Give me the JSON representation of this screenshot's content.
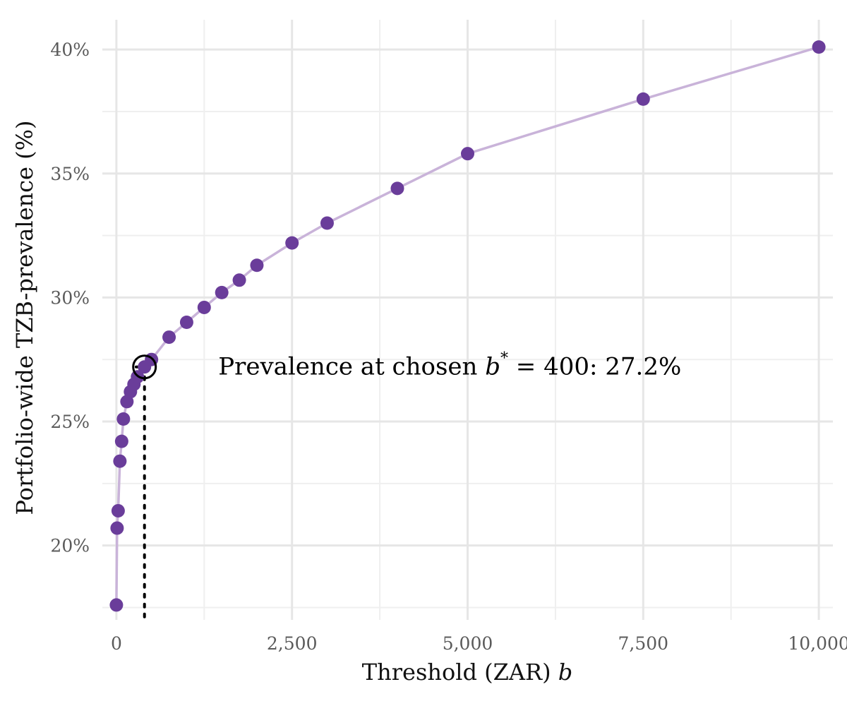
{
  "chart_data": {
    "type": "line",
    "title": "",
    "xlabel": "Threshold (ZAR) ",
    "xlabel_var": "b",
    "ylabel": "Portfolio-wide TZB-prevalence (%)",
    "xlim": [
      -200,
      10200
    ],
    "ylim": [
      17.0,
      41.2
    ],
    "x_ticks": [
      0,
      2500,
      5000,
      7500,
      10000
    ],
    "x_tick_labels": [
      "0",
      "2,500",
      "5,000",
      "7,500",
      "10,000"
    ],
    "y_ticks": [
      20,
      25,
      30,
      35,
      40
    ],
    "y_tick_labels": [
      "20%",
      "25%",
      "30%",
      "35%",
      "40%"
    ],
    "grid": true,
    "series": [
      {
        "x": [
          0,
          10,
          25,
          50,
          75,
          100,
          150,
          200,
          250,
          300,
          400,
          500,
          750,
          1000,
          1250,
          1500,
          1750,
          2000,
          2500,
          3000,
          4000,
          5000,
          7500,
          10000
        ],
        "y": [
          17.6,
          20.7,
          21.4,
          23.4,
          24.2,
          25.1,
          25.8,
          26.2,
          26.5,
          26.8,
          27.2,
          27.5,
          28.4,
          29.0,
          29.6,
          30.2,
          30.7,
          31.3,
          32.2,
          33.0,
          34.4,
          35.8,
          38.0,
          40.1
        ],
        "color": "#6a3d9a",
        "line_color": "#c9b3d9"
      }
    ],
    "highlight": {
      "x": 400,
      "y": 27.2
    },
    "annotation": {
      "prefix": "Prevalence at chosen ",
      "var": "b",
      "sup": "*",
      "suffix": " = 400:  27.2%",
      "x": 1450,
      "y": 27.2
    }
  }
}
